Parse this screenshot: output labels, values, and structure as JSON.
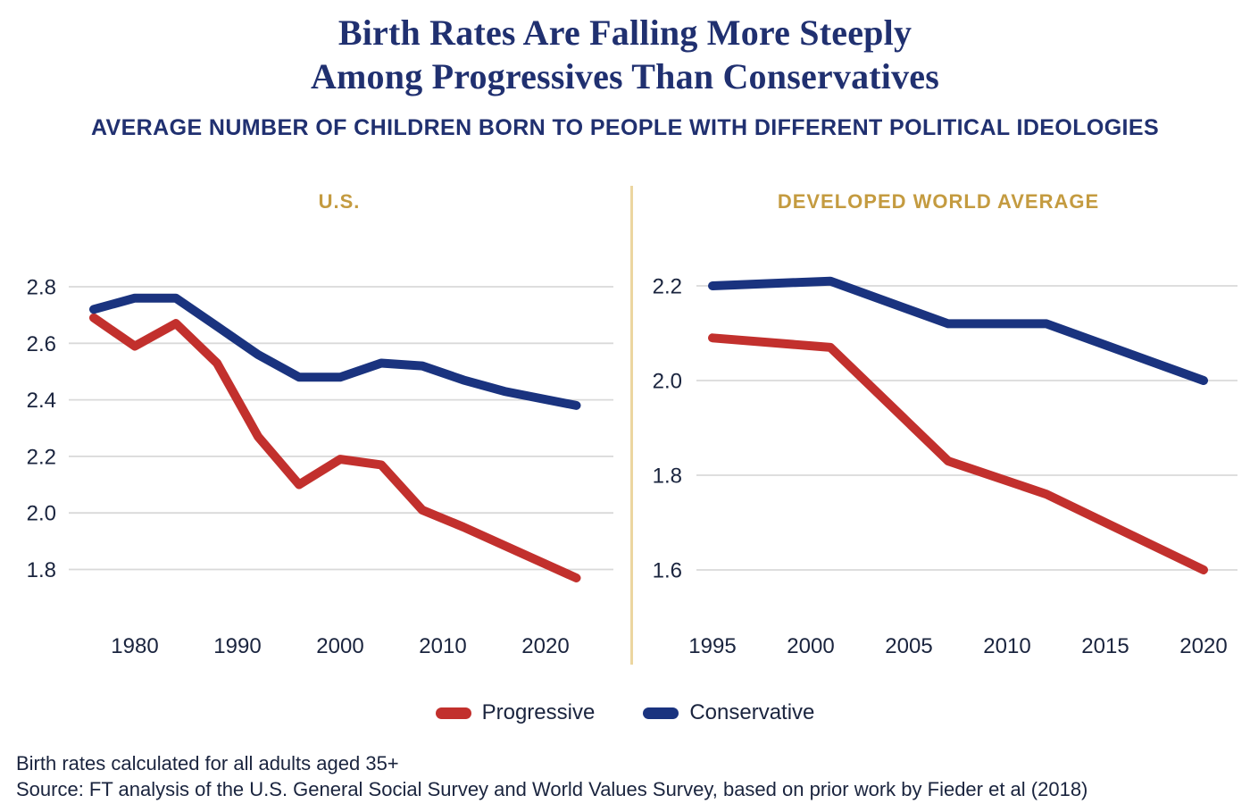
{
  "header": {
    "title_line1": "Birth Rates Are Falling More Steeply",
    "title_line2": "Among Progressives Than Conservatives",
    "subtitle": "AVERAGE NUMBER OF CHILDREN BORN TO PEOPLE WITH DIFFERENT POLITICAL IDEOLOGIES"
  },
  "legend": {
    "items": [
      {
        "label": "Progressive",
        "color": "#c2302d"
      },
      {
        "label": "Conservative",
        "color": "#1a337f"
      }
    ]
  },
  "notes": {
    "line1": "Birth rates calculated for all adults aged 35+",
    "line2": "Source: FT analysis of the U.S. General Social Survey and World Values Survey, based on prior work by Fieder et al (2018)"
  },
  "colors": {
    "progressive": "#c2302d",
    "conservative": "#1a337f",
    "panel_title": "#c49b40",
    "divider": "#ecd6a0",
    "grid": "#d9d9d9",
    "axis_text": "#1a243e",
    "title_text": "#203070"
  },
  "chart_data": [
    {
      "type": "line",
      "title": "U.S.",
      "xlabel": "",
      "ylabel": "",
      "x_ticks": [
        1980,
        1990,
        2000,
        2010,
        2020
      ],
      "y_ticks": [
        2.8,
        2.6,
        2.4,
        2.2,
        2.0,
        1.8
      ],
      "xlim": [
        1974,
        2025
      ],
      "ylim": [
        1.7,
        2.86
      ],
      "grid": true,
      "series": [
        {
          "name": "Progressive",
          "color": "#c2302d",
          "x": [
            1976,
            1980,
            1984,
            1988,
            1992,
            1996,
            2000,
            2004,
            2008,
            2012,
            2023
          ],
          "y": [
            2.69,
            2.59,
            2.67,
            2.53,
            2.27,
            2.1,
            2.19,
            2.17,
            2.01,
            1.95,
            1.77
          ]
        },
        {
          "name": "Conservative",
          "color": "#1a337f",
          "x": [
            1976,
            1980,
            1984,
            1988,
            1992,
            1996,
            2000,
            2004,
            2008,
            2012,
            2016,
            2023
          ],
          "y": [
            2.72,
            2.76,
            2.76,
            2.66,
            2.56,
            2.48,
            2.48,
            2.53,
            2.52,
            2.47,
            2.43,
            2.38
          ]
        }
      ]
    },
    {
      "type": "line",
      "title": "DEVELOPED WORLD AVERAGE",
      "xlabel": "",
      "ylabel": "",
      "x_ticks": [
        1995,
        2000,
        2005,
        2010,
        2015,
        2020
      ],
      "y_ticks": [
        2.2,
        2.0,
        1.8,
        1.6
      ],
      "xlim": [
        1993,
        2022
      ],
      "ylim": [
        1.5,
        2.28
      ],
      "grid": true,
      "series": [
        {
          "name": "Progressive",
          "color": "#c2302d",
          "x": [
            1995,
            2001,
            2007,
            2012,
            2020
          ],
          "y": [
            2.09,
            2.07,
            1.83,
            1.76,
            1.6
          ]
        },
        {
          "name": "Conservative",
          "color": "#1a337f",
          "x": [
            1995,
            2001,
            2007,
            2012,
            2020
          ],
          "y": [
            2.2,
            2.21,
            2.12,
            2.12,
            2.0
          ]
        }
      ]
    }
  ]
}
